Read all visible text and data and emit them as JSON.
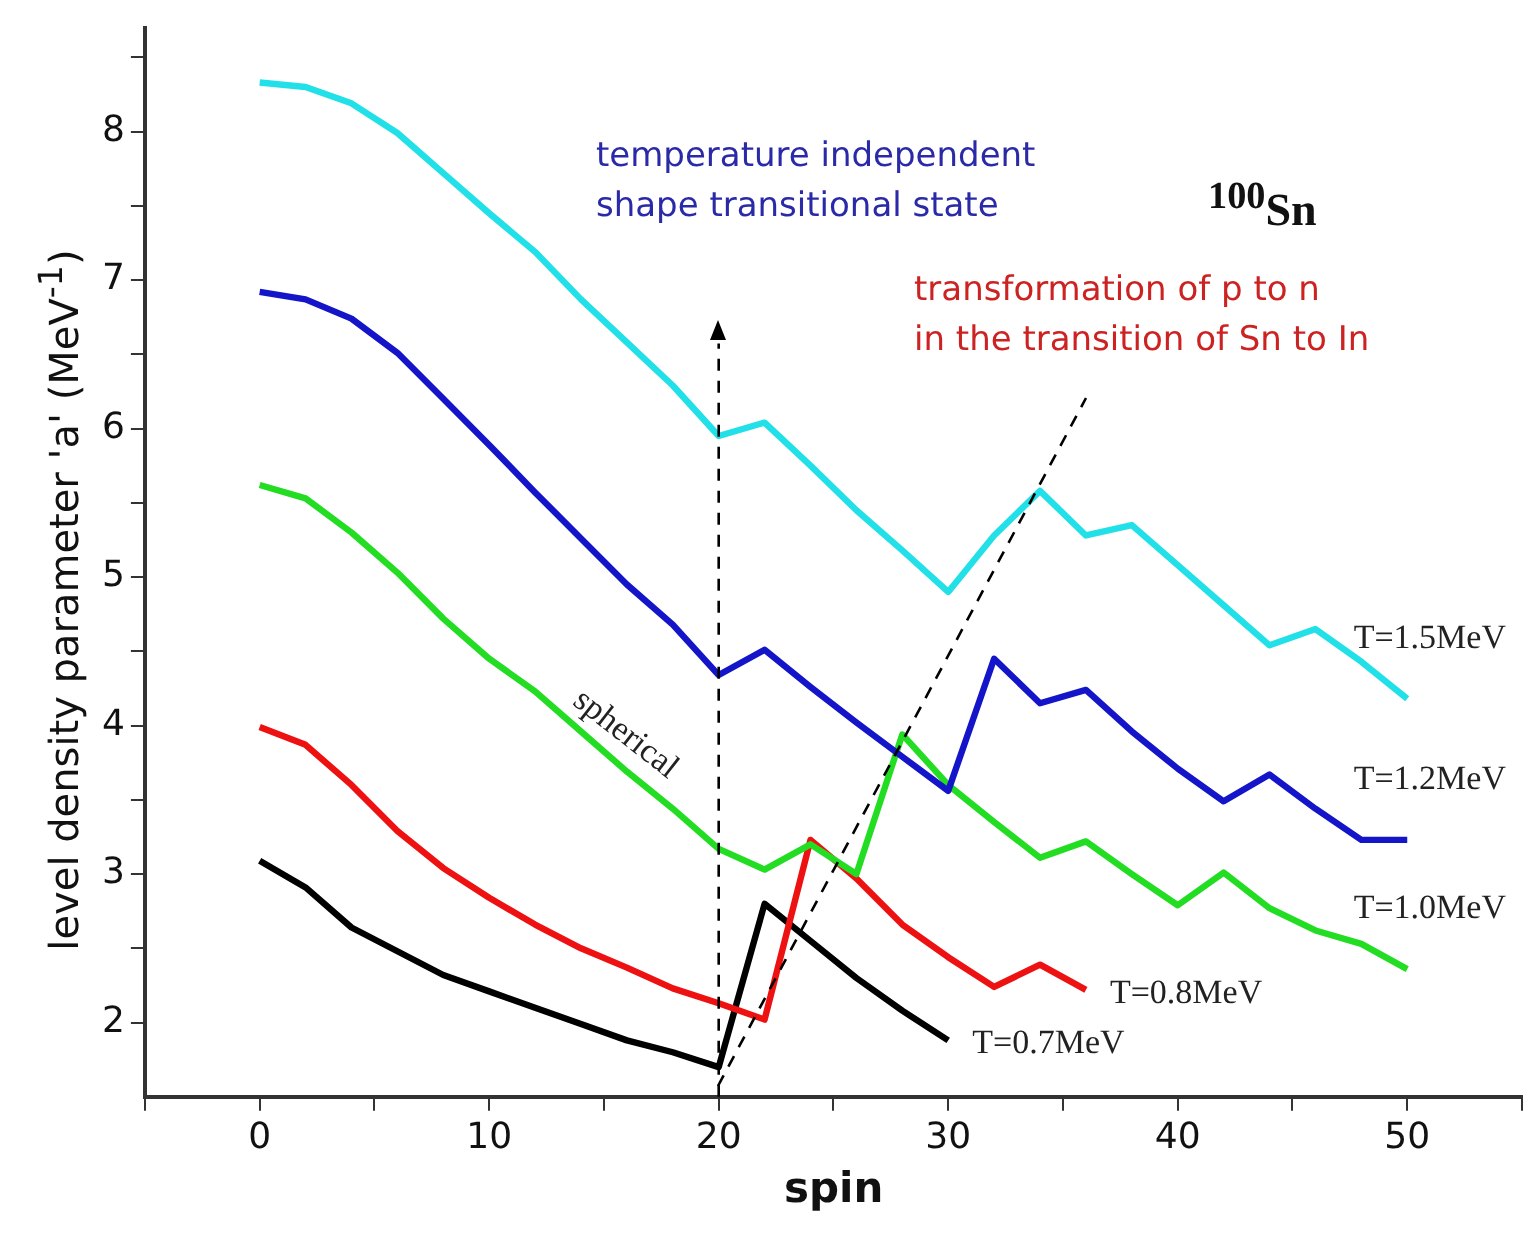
{
  "chart_data": {
    "type": "line",
    "xlabel": "spin",
    "ylabel": "level density parameter 'a' (MeV$^{-1}$)",
    "xlim": [
      -5,
      55
    ],
    "xticks": [
      {
        "value": -5,
        "label": null
      },
      0,
      {
        "value": 5,
        "label": null
      },
      10,
      {
        "value": 15,
        "label": null
      },
      20,
      {
        "value": 25,
        "label": null
      },
      30,
      {
        "value": 35,
        "label": null
      },
      40,
      {
        "value": 45,
        "label": null
      },
      50,
      {
        "value": 55,
        "label": null
      }
    ],
    "ylim": [
      1.5,
      8.7
    ],
    "yticks": [
      2,
      {
        "value": 2.5,
        "label": null
      },
      3,
      {
        "value": 3.5,
        "label": null
      },
      4,
      {
        "value": 4.5,
        "label": null
      },
      5,
      {
        "value": 5.5,
        "label": null
      },
      6,
      {
        "value": 6.5,
        "label": null
      },
      7,
      {
        "value": 7.5,
        "label": null
      },
      8,
      {
        "value": 8.5,
        "label": null
      }
    ],
    "grid": false,
    "ref_lines": [
      {
        "axis": "x",
        "value": 20,
        "color": "#000000",
        "line_style": "dashed"
      }
    ],
    "legend": false,
    "marker": "none",
    "series": [
      {
        "name": "T=1.5MeV",
        "color": "#22e0e8",
        "x": [
          0,
          2,
          4,
          6,
          8,
          10,
          12,
          14,
          16,
          18,
          20,
          22,
          24,
          26,
          28,
          30,
          32,
          34,
          36,
          38,
          40,
          42,
          44,
          46,
          48,
          50
        ],
        "values": [
          8.33,
          8.3,
          8.19,
          7.99,
          7.72,
          7.45,
          7.19,
          6.87,
          6.58,
          6.29,
          5.95,
          6.04,
          5.75,
          5.45,
          5.18,
          4.9,
          5.28,
          5.58,
          5.28,
          5.35,
          5.08,
          4.81,
          4.54,
          4.65,
          4.43,
          4.18
        ]
      },
      {
        "name": "T=1.2MeV",
        "color": "#1414c8",
        "x": [
          0,
          2,
          4,
          6,
          8,
          10,
          12,
          14,
          16,
          18,
          20,
          22,
          24,
          26,
          28,
          30,
          32,
          34,
          36,
          38,
          40,
          42,
          44,
          46,
          48,
          50
        ],
        "values": [
          6.92,
          6.87,
          6.74,
          6.51,
          6.2,
          5.89,
          5.57,
          5.26,
          4.95,
          4.68,
          4.34,
          4.51,
          4.26,
          4.02,
          3.79,
          3.56,
          4.45,
          4.15,
          4.24,
          3.96,
          3.71,
          3.49,
          3.67,
          3.44,
          3.23,
          3.23
        ]
      },
      {
        "name": "T=1.0MeV",
        "color": "#22dd22",
        "x": [
          0,
          2,
          4,
          6,
          8,
          10,
          12,
          14,
          16,
          18,
          20,
          22,
          24,
          26,
          28,
          30,
          32,
          34,
          36,
          38,
          40,
          42,
          44,
          46,
          48,
          50
        ],
        "values": [
          5.62,
          5.53,
          5.3,
          5.03,
          4.72,
          4.45,
          4.23,
          3.96,
          3.69,
          3.44,
          3.17,
          3.03,
          3.2,
          3.0,
          3.94,
          3.6,
          3.35,
          3.11,
          3.22,
          3.0,
          2.79,
          3.01,
          2.77,
          2.62,
          2.53,
          2.36
        ]
      },
      {
        "name": "T=0.8MeV",
        "color": "#ee1111",
        "x": [
          0,
          2,
          4,
          6,
          8,
          10,
          12,
          14,
          16,
          18,
          20,
          22,
          24,
          26,
          28,
          30,
          32,
          34,
          36
        ],
        "values": [
          3.99,
          3.87,
          3.6,
          3.29,
          3.04,
          2.84,
          2.66,
          2.5,
          2.37,
          2.23,
          2.13,
          2.02,
          3.23,
          2.97,
          2.66,
          2.44,
          2.24,
          2.39,
          2.22
        ]
      },
      {
        "name": "T=0.7MeV",
        "color": "#000000",
        "x": [
          0,
          2,
          4,
          6,
          8,
          10,
          12,
          14,
          16,
          18,
          20,
          22,
          24,
          26,
          28,
          30
        ],
        "values": [
          3.09,
          2.91,
          2.64,
          2.48,
          2.32,
          2.21,
          2.1,
          1.99,
          1.88,
          1.8,
          1.7,
          2.8,
          2.55,
          2.3,
          2.08,
          1.88
        ]
      }
    ],
    "annotations": [
      "temperature independent\nshape transitional state",
      "$^{100}$Sn",
      "transformation of p to n\nin the transition of Sn to In",
      "spherical"
    ]
  }
}
